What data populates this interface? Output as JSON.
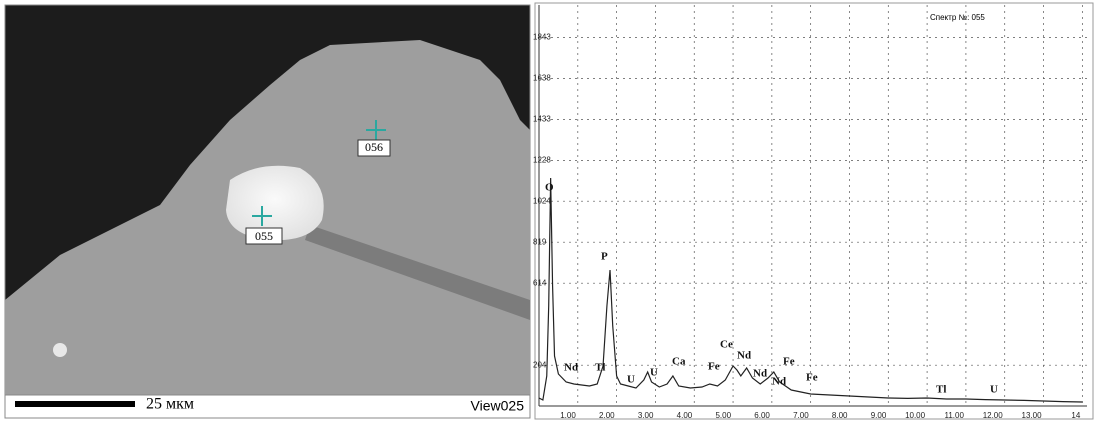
{
  "image": {
    "labels": [
      "056",
      "055"
    ],
    "scale_label": "25 мкм",
    "view_label": "View025"
  },
  "chart_data": {
    "type": "line",
    "title": "Спектр №: 055",
    "x": [
      0.0,
      0.1,
      0.2,
      0.25,
      0.3,
      0.35,
      0.4,
      0.5,
      0.7,
      0.9,
      1.1,
      1.3,
      1.5,
      1.65,
      1.75,
      1.83,
      1.9,
      2.0,
      2.1,
      2.3,
      2.5,
      2.7,
      2.8,
      2.9,
      3.1,
      3.3,
      3.45,
      3.6,
      3.9,
      4.2,
      4.4,
      4.6,
      4.8,
      5.0,
      5.1,
      5.2,
      5.35,
      5.5,
      5.7,
      5.9,
      6.05,
      6.2,
      6.5,
      7.0,
      7.5,
      8.0,
      8.5,
      9.0,
      9.5,
      10.0,
      10.5,
      11.0,
      11.5,
      12.0,
      12.5,
      13.0,
      13.5,
      14.0
    ],
    "series": [
      {
        "color": "#222222",
        "values": [
          40,
          30,
          150,
          500,
          1140,
          600,
          250,
          160,
          120,
          110,
          105,
          100,
          110,
          200,
          500,
          680,
          400,
          150,
          110,
          100,
          90,
          130,
          170,
          120,
          95,
          110,
          150,
          100,
          90,
          95,
          110,
          100,
          130,
          200,
          180,
          150,
          190,
          140,
          110,
          140,
          170,
          120,
          80,
          60,
          55,
          50,
          45,
          40,
          38,
          40,
          35,
          35,
          32,
          30,
          28,
          25,
          22,
          20
        ]
      }
    ],
    "xlim": [
      0,
      14.12
    ],
    "ylim": [
      0,
      2005
    ],
    "xticks": [
      {
        "value": 1,
        "label": "1.00"
      },
      {
        "value": 2,
        "label": "2.00"
      },
      {
        "value": 3,
        "label": "3.00"
      },
      {
        "value": 4,
        "label": "4.00"
      },
      {
        "value": 5,
        "label": "5.00"
      },
      {
        "value": 6,
        "label": "6.00"
      },
      {
        "value": 7,
        "label": "7.00"
      },
      {
        "value": 8,
        "label": "8.00"
      },
      {
        "value": 9,
        "label": "9.00"
      },
      {
        "value": 10,
        "label": "10.00"
      },
      {
        "value": 11,
        "label": "11.00"
      },
      {
        "value": 12,
        "label": "12.00"
      },
      {
        "value": 13,
        "label": "13.00"
      },
      14
    ],
    "yticks": [
      204,
      614,
      819,
      1024,
      1228,
      1433,
      1638,
      1843
    ],
    "grid": true,
    "peak_labels": [
      "O",
      "P",
      "Nd",
      "Tl",
      "U",
      "U",
      "Ca",
      "Fe",
      "Ce",
      "Nd",
      "Nd",
      "Nd",
      "Fe",
      "Fe",
      "Tl",
      "U"
    ]
  }
}
